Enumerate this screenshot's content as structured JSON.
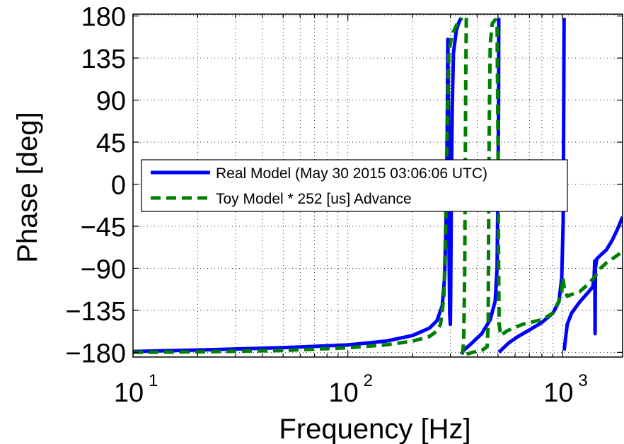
{
  "chart_data": {
    "type": "line",
    "title": "",
    "xlabel": "Frequency [Hz]",
    "ylabel": "Phase [deg]",
    "xscale": "log",
    "xlim": [
      10,
      1900
    ],
    "ylim": [
      -185,
      182
    ],
    "grid": true,
    "legend_position": "center-left",
    "x_ticks": [
      {
        "value": 10,
        "base": "10",
        "exp": "1"
      },
      {
        "value": 100,
        "base": "10",
        "exp": "2"
      },
      {
        "value": 1000,
        "base": "10",
        "exp": "3"
      }
    ],
    "y_ticks": [
      {
        "value": 180,
        "label": "180"
      },
      {
        "value": 135,
        "label": "135"
      },
      {
        "value": 90,
        "label": "90"
      },
      {
        "value": 45,
        "label": "45"
      },
      {
        "value": 0,
        "label": "0"
      },
      {
        "value": -45,
        "label": "−45"
      },
      {
        "value": -90,
        "label": "−90"
      },
      {
        "value": -135,
        "label": "−135"
      },
      {
        "value": -180,
        "label": "−180"
      }
    ],
    "series": [
      {
        "name": "Real Model (May 30 2015 03:06:06 UTC)",
        "color": "#0000ff",
        "style": "solid",
        "segments": [
          [
            [
              10,
              -179
            ],
            [
              20,
              -177.5
            ],
            [
              50,
              -175
            ],
            [
              100,
              -172
            ],
            [
              150,
              -168
            ],
            [
              200,
              -162
            ],
            [
              240,
              -154
            ],
            [
              260,
              -146
            ],
            [
              275,
              -130
            ],
            [
              282,
              -100
            ],
            [
              286,
              -50
            ],
            [
              289,
              20
            ],
            [
              291,
              100
            ],
            [
              292,
              155
            ],
            [
              294,
              60
            ],
            [
              296,
              -80
            ],
            [
              298,
              -140
            ],
            [
              300,
              -150
            ],
            [
              301,
              -120
            ],
            [
              303,
              -20
            ],
            [
              306,
              80
            ],
            [
              310,
              140
            ],
            [
              320,
              165
            ],
            [
              330,
              174
            ],
            [
              337,
              178
            ]
          ],
          [
            [
              337,
              -182
            ],
            [
              345,
              -178
            ],
            [
              370,
              -172
            ],
            [
              420,
              -160
            ],
            [
              460,
              -145
            ],
            [
              485,
              -125
            ],
            [
              495,
              -90
            ],
            [
              500,
              0
            ],
            [
              503,
              90
            ],
            [
              504,
              178
            ]
          ],
          [
            [
              505,
              -180
            ],
            [
              520,
              -177
            ],
            [
              560,
              -170
            ],
            [
              620,
              -163
            ],
            [
              700,
              -156
            ],
            [
              800,
              -148
            ],
            [
              900,
              -138
            ],
            [
              960,
              -126
            ],
            [
              990,
              -100
            ],
            [
              1005,
              -40
            ],
            [
              1012,
              100
            ],
            [
              1015,
              178
            ]
          ],
          [
            [
              1016,
              -178
            ],
            [
              1025,
              -170
            ],
            [
              1050,
              -150
            ],
            [
              1100,
              -138
            ],
            [
              1200,
              -126
            ],
            [
              1300,
              -117
            ],
            [
              1380,
              -110
            ],
            [
              1400,
              -100
            ],
            [
              1410,
              -82
            ],
            [
              1415,
              -160
            ],
            [
              1420,
              -90
            ],
            [
              1440,
              -80
            ],
            [
              1500,
              -76
            ],
            [
              1600,
              -70
            ],
            [
              1700,
              -60
            ],
            [
              1800,
              -48
            ],
            [
              1900,
              -35
            ]
          ]
        ]
      },
      {
        "name": "Toy Model * 252 [us] Advance",
        "color": "#007f00",
        "style": "dashed",
        "segments": [
          [
            [
              10,
              -180
            ],
            [
              20,
              -179.5
            ],
            [
              50,
              -178
            ],
            [
              100,
              -175
            ],
            [
              150,
              -172
            ],
            [
              200,
              -168
            ],
            [
              240,
              -163
            ],
            [
              260,
              -157
            ],
            [
              270,
              -150
            ],
            [
              280,
              -120
            ],
            [
              285,
              -50
            ],
            [
              290,
              60
            ],
            [
              295,
              140
            ],
            [
              305,
              160
            ],
            [
              320,
              170
            ],
            [
              333,
              175
            ],
            [
              340,
              178
            ]
          ],
          [
            [
              341,
              -182
            ],
            [
              346,
              -170
            ],
            [
              350,
              -90
            ],
            [
              352,
              20
            ],
            [
              354,
              120
            ],
            [
              356,
              178
            ]
          ],
          [
            [
              357,
              -182
            ],
            [
              380,
              -180
            ],
            [
              420,
              -178
            ],
            [
              445,
              -174
            ],
            [
              450,
              -150
            ],
            [
              452,
              -50
            ],
            [
              455,
              60
            ],
            [
              460,
              150
            ],
            [
              470,
              172
            ],
            [
              485,
              176
            ],
            [
              495,
              170
            ],
            [
              500,
              40
            ],
            [
              503,
              -80
            ],
            [
              506,
              -150
            ],
            [
              515,
              -162
            ],
            [
              550,
              -157
            ],
            [
              650,
              -150
            ],
            [
              800,
              -145
            ],
            [
              900,
              -138
            ],
            [
              960,
              -125
            ],
            [
              990,
              -115
            ],
            [
              1000,
              -100
            ],
            [
              1020,
              -112
            ],
            [
              1050,
              -120
            ],
            [
              1100,
              -118
            ],
            [
              1200,
              -115
            ],
            [
              1300,
              -108
            ],
            [
              1400,
              -100
            ],
            [
              1500,
              -90
            ],
            [
              1600,
              -84
            ],
            [
              1750,
              -78
            ],
            [
              1900,
              -72
            ]
          ]
        ]
      }
    ]
  }
}
